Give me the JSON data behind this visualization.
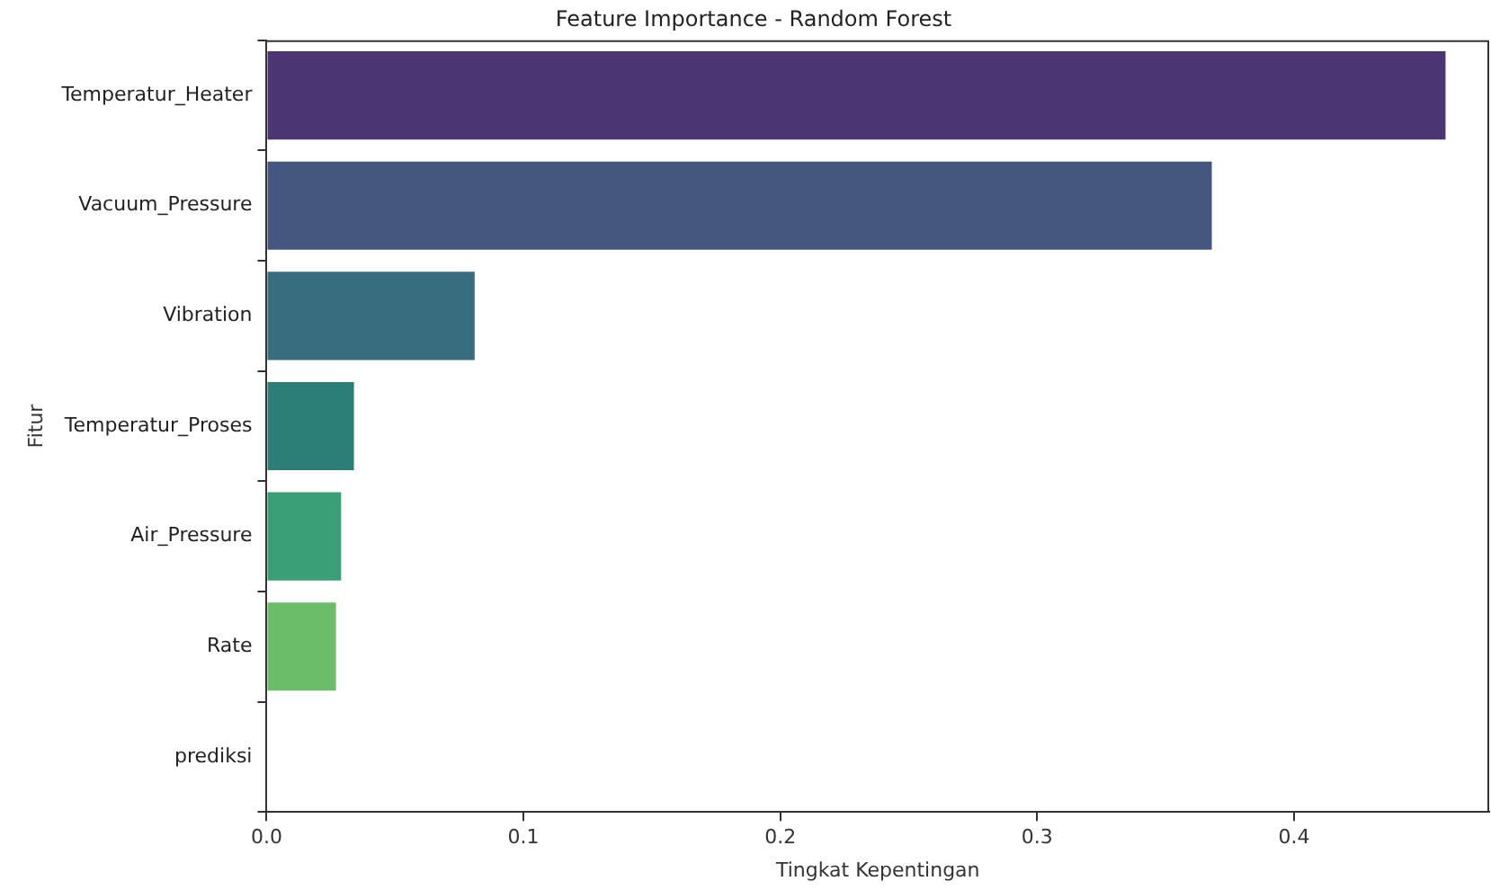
{
  "chart_data": {
    "type": "bar",
    "orientation": "horizontal",
    "title": "Feature Importance - Random Forest",
    "xlabel": "Tingkat Kepentingan",
    "ylabel": "Fitur",
    "categories": [
      "Temperatur_Heater",
      "Vacuum_Pressure",
      "Vibration",
      "Temperatur_Proses",
      "Air_Pressure",
      "Rate",
      "prediksi"
    ],
    "values": [
      0.459,
      0.368,
      0.081,
      0.034,
      0.029,
      0.027,
      0
    ],
    "colors": [
      "#4b3573",
      "#46577f",
      "#376d7e",
      "#2c7f77",
      "#3a9e77",
      "#6bbd6a",
      "#b5de2b"
    ],
    "xlim": [
      0,
      0.476
    ],
    "xticks": [
      {
        "value": 0,
        "label": "0.0"
      },
      0.1,
      0.2,
      0.3,
      0.4
    ],
    "grid": false,
    "legend": false
  }
}
